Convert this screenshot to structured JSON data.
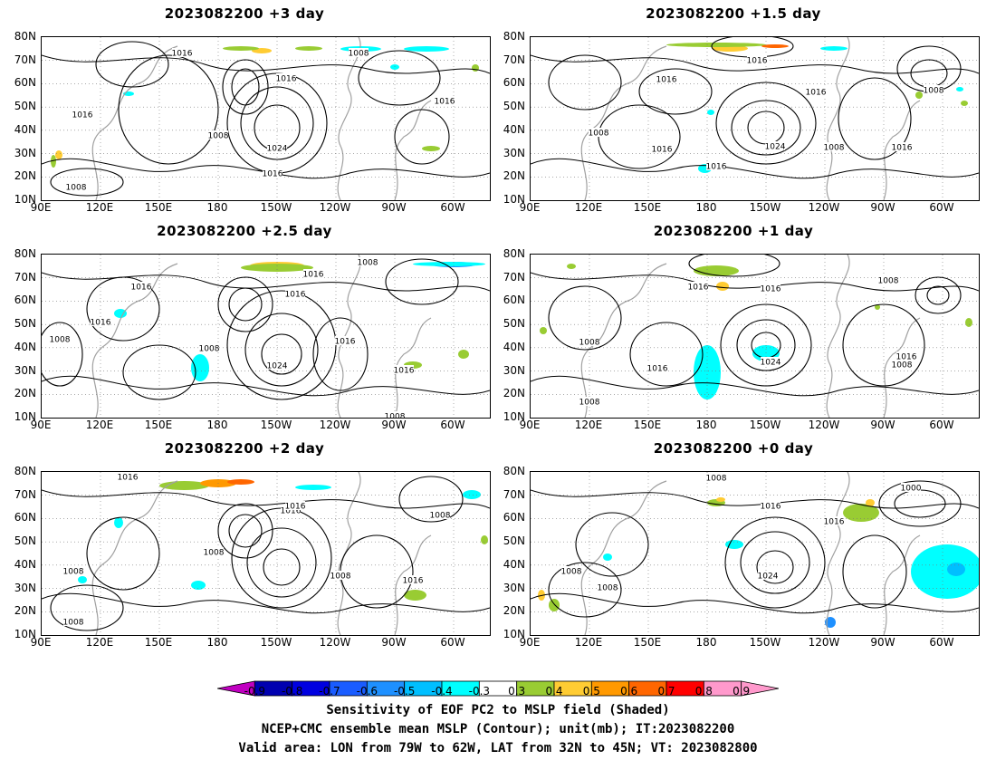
{
  "chart_data": [
    {
      "type": "heatmap",
      "title": "2023082200 +3 day",
      "contours": [
        {
          "label": "1016"
        },
        {
          "label": "1008"
        },
        {
          "label": "1016"
        },
        {
          "label": "1016"
        },
        {
          "label": "1016"
        },
        {
          "label": "1008"
        },
        {
          "label": "1024"
        },
        {
          "label": "1016"
        },
        {
          "label": "1008"
        }
      ]
    },
    {
      "type": "heatmap",
      "title": "2023082200 +1.5 day",
      "contours": [
        {
          "label": "1016"
        },
        {
          "label": "1016"
        },
        {
          "label": "1016"
        },
        {
          "label": "1008"
        },
        {
          "label": "1008"
        },
        {
          "label": "1016"
        },
        {
          "label": "1024"
        },
        {
          "label": "1008"
        },
        {
          "label": "1016"
        },
        {
          "label": "1016"
        }
      ]
    },
    {
      "type": "heatmap",
      "title": "2023082200 +2.5 day",
      "contours": [
        {
          "label": "1008"
        },
        {
          "label": "1016"
        },
        {
          "label": "1016"
        },
        {
          "label": "1016"
        },
        {
          "label": "1016"
        },
        {
          "label": "1008"
        },
        {
          "label": "1008"
        },
        {
          "label": "1024"
        },
        {
          "label": "1016"
        },
        {
          "label": "1016"
        },
        {
          "label": "1008"
        }
      ]
    },
    {
      "type": "heatmap",
      "title": "2023082200 +1 day",
      "contours": [
        {
          "label": "1016"
        },
        {
          "label": "1016"
        },
        {
          "label": "1008"
        },
        {
          "label": "1008"
        },
        {
          "label": "1016"
        },
        {
          "label": "1008"
        },
        {
          "label": "1024"
        },
        {
          "label": "1008"
        },
        {
          "label": "1016"
        }
      ]
    },
    {
      "type": "heatmap",
      "title": "2023082200 +2 day",
      "contours": [
        {
          "label": "1016"
        },
        {
          "label": "1016"
        },
        {
          "label": "1016"
        },
        {
          "label": "1008"
        },
        {
          "label": "1008"
        },
        {
          "label": "1008"
        },
        {
          "label": "1016"
        },
        {
          "label": "1008"
        },
        {
          "label": "1008"
        }
      ]
    },
    {
      "type": "heatmap",
      "title": "2023082200 +0 day",
      "contours": [
        {
          "label": "1008"
        },
        {
          "label": "1000"
        },
        {
          "label": "1016"
        },
        {
          "label": "1016"
        },
        {
          "label": "1008"
        },
        {
          "label": "1008"
        },
        {
          "label": "1024"
        }
      ]
    }
  ],
  "axes": {
    "lat_ticks": [
      "80N",
      "70N",
      "60N",
      "50N",
      "40N",
      "30N",
      "20N",
      "10N"
    ],
    "lon_ticks": [
      "90E",
      "120E",
      "150E",
      "180",
      "150W",
      "120W",
      "90W",
      "60W"
    ]
  },
  "colorbar": {
    "levels": [
      "-0.9",
      "-0.8",
      "-0.7",
      "-0.6",
      "-0.5",
      "-0.4",
      "-0.3",
      "0.3",
      "0.4",
      "0.5",
      "0.6",
      "0.7",
      "0.8",
      "0.9"
    ],
    "colors": [
      "#c000c0",
      "#0000b0",
      "#0000e0",
      "#1a5cff",
      "#1e90ff",
      "#00bfff",
      "#00ffff",
      "#ffffff",
      "#99cc33",
      "#ffcc33",
      "#ff9900",
      "#ff6600",
      "#ff0000",
      "#ff99cc"
    ]
  },
  "captions": [
    "Sensitivity of EOF PC2 to MSLP field (Shaded)",
    "NCEP+CMC ensemble mean MSLP (Contour); unit(mb); IT:2023082200",
    "Valid area: LON from 79W to 62W, LAT from 32N to 45N; VT: 2023082800"
  ]
}
